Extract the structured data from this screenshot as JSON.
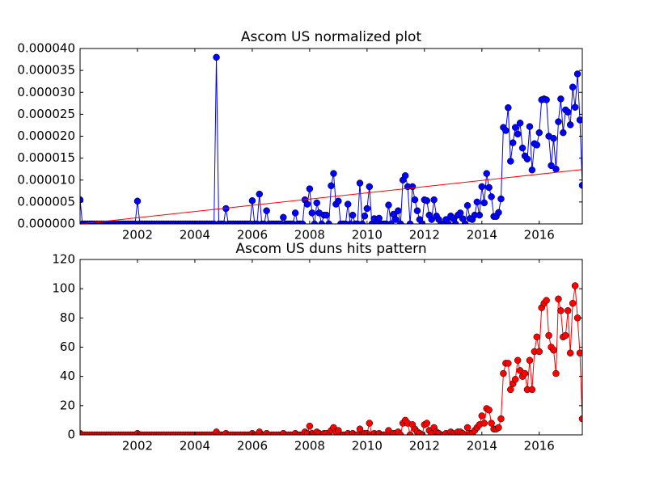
{
  "chart_data": [
    {
      "type": "line",
      "title": "Ascom US normalized plot",
      "x": [
        2000,
        2000.083,
        2000.167,
        2000.25,
        2000.333,
        2000.417,
        2000.5,
        2000.583,
        2000.667,
        2000.75,
        2000.833,
        2000.917,
        2001,
        2001.083,
        2001.167,
        2001.25,
        2001.333,
        2001.417,
        2001.5,
        2001.583,
        2001.667,
        2001.75,
        2001.833,
        2001.917,
        2002,
        2002.083,
        2002.167,
        2002.25,
        2002.333,
        2002.417,
        2002.5,
        2002.583,
        2002.667,
        2002.75,
        2002.833,
        2002.917,
        2003,
        2003.083,
        2003.167,
        2003.25,
        2003.333,
        2003.417,
        2003.5,
        2003.583,
        2003.667,
        2003.75,
        2003.833,
        2003.917,
        2004,
        2004.083,
        2004.167,
        2004.25,
        2004.333,
        2004.417,
        2004.5,
        2004.583,
        2004.667,
        2004.75,
        2004.833,
        2004.917,
        2005,
        2005.083,
        2005.167,
        2005.25,
        2005.333,
        2005.417,
        2005.5,
        2005.583,
        2005.667,
        2005.75,
        2005.833,
        2005.917,
        2006,
        2006.083,
        2006.167,
        2006.25,
        2006.333,
        2006.417,
        2006.5,
        2006.583,
        2006.667,
        2006.75,
        2006.833,
        2006.917,
        2007,
        2007.083,
        2007.167,
        2007.25,
        2007.333,
        2007.417,
        2007.5,
        2007.583,
        2007.667,
        2007.75,
        2007.833,
        2007.917,
        2008,
        2008.083,
        2008.167,
        2008.25,
        2008.333,
        2008.417,
        2008.5,
        2008.583,
        2008.667,
        2008.75,
        2008.833,
        2008.917,
        2009,
        2009.083,
        2009.167,
        2009.25,
        2009.333,
        2009.417,
        2009.5,
        2009.583,
        2009.667,
        2009.75,
        2009.833,
        2009.917,
        2010,
        2010.083,
        2010.167,
        2010.25,
        2010.333,
        2010.417,
        2010.5,
        2010.583,
        2010.667,
        2010.75,
        2010.833,
        2010.917,
        2011,
        2011.083,
        2011.167,
        2011.25,
        2011.333,
        2011.417,
        2011.5,
        2011.583,
        2011.667,
        2011.75,
        2011.833,
        2011.917,
        2012,
        2012.083,
        2012.167,
        2012.25,
        2012.333,
        2012.417,
        2012.5,
        2012.583,
        2012.667,
        2012.75,
        2012.833,
        2012.917,
        2013,
        2013.083,
        2013.167,
        2013.25,
        2013.333,
        2013.417,
        2013.5,
        2013.583,
        2013.667,
        2013.75,
        2013.833,
        2013.917,
        2014,
        2014.083,
        2014.167,
        2014.25,
        2014.333,
        2014.417,
        2014.5,
        2014.583,
        2014.667,
        2014.75,
        2014.833,
        2014.917,
        2015,
        2015.083,
        2015.167,
        2015.25,
        2015.333,
        2015.417,
        2015.5,
        2015.583,
        2015.667,
        2015.75,
        2015.833,
        2015.917,
        2016,
        2016.083,
        2016.167,
        2016.25,
        2016.333,
        2016.417,
        2016.5,
        2016.583,
        2016.667,
        2016.75,
        2016.833,
        2016.917,
        2017,
        2017.083,
        2017.167,
        2017.25,
        2017.333,
        2017.417,
        2017.5
      ],
      "series": [
        {
          "color": "#0000ff",
          "values": [
            5.5e-06,
            0,
            0,
            0,
            0,
            0,
            0,
            0,
            0,
            0,
            0,
            0,
            0,
            0,
            0,
            0,
            0,
            0,
            0,
            0,
            0,
            0,
            0,
            0,
            5.2e-06,
            0,
            0,
            0,
            0,
            0,
            0,
            0,
            0,
            0,
            0,
            0,
            0,
            0,
            0,
            0,
            0,
            0,
            0,
            0,
            0,
            0,
            0,
            0,
            0,
            0,
            0,
            0,
            0,
            0,
            0,
            0,
            0,
            3.8e-05,
            0,
            0,
            0,
            3.5e-06,
            0,
            0,
            0,
            0,
            0,
            0,
            0,
            0,
            0,
            0,
            5.3e-06,
            0,
            0,
            6.8e-06,
            0,
            0,
            3e-06,
            0,
            0,
            0,
            0,
            0,
            0,
            1.5e-06,
            0,
            0,
            0,
            0,
            2.5e-06,
            0,
            0,
            0,
            5.5e-06,
            4.5e-06,
            8e-06,
            2.5e-06,
            0,
            4.8e-06,
            2.5e-06,
            0,
            2e-06,
            2e-06,
            0,
            8.7e-06,
            1.15e-05,
            4.5e-06,
            5.2e-06,
            0,
            0,
            0,
            4.5e-06,
            0,
            2e-06,
            0,
            0,
            9.3e-06,
            0,
            1.8e-06,
            3.5e-06,
            8.5e-06,
            0,
            1.2e-06,
            0,
            1.3e-06,
            0,
            0,
            0,
            4.3e-06,
            0,
            2.2e-06,
            1e-06,
            3e-06,
            0,
            1e-05,
            1.1e-05,
            8.5e-06,
            0,
            8.5e-06,
            5.5e-06,
            3e-06,
            1e-06,
            0,
            5.5e-06,
            5.3e-06,
            2e-06,
            1e-06,
            5.5e-06,
            1.8e-06,
            1e-06,
            0,
            0,
            1e-06,
            0,
            1.8e-06,
            1.2e-06,
            0,
            2e-06,
            2.5e-06,
            1.2e-06,
            0,
            4.2e-06,
            1.2e-06,
            1e-06,
            2e-06,
            5e-06,
            2e-06,
            8.5e-06,
            4.8e-06,
            1.15e-05,
            8.3e-06,
            6.2e-06,
            1.7e-06,
            1.7e-06,
            2.6e-06,
            5.7e-06,
            2.2e-05,
            2.13e-05,
            2.65e-05,
            1.43e-05,
            1.85e-05,
            2.2e-05,
            2.05e-05,
            2.3e-05,
            1.73e-05,
            1.55e-05,
            1.48e-05,
            2.22e-05,
            1.23e-05,
            1.83e-05,
            1.8e-05,
            2.08e-05,
            2.83e-05,
            2.85e-05,
            2.83e-05,
            2e-05,
            1.33e-05,
            1.95e-05,
            1.25e-05,
            2.33e-05,
            2.85e-05,
            2.08e-05,
            2.6e-05,
            2.55e-05,
            2.26e-05,
            3.12e-05,
            2.66e-05,
            3.42e-05,
            2.37e-05,
            8.8e-06
          ]
        }
      ],
      "fit": {
        "x": [
          2000,
          2017.5
        ],
        "values": [
          0,
          1.24e-05
        ],
        "color": "#ff0000"
      },
      "xlim": [
        2000,
        2017.5
      ],
      "xticks": [
        2002,
        2004,
        2006,
        2008,
        2010,
        2012,
        2014,
        2016
      ],
      "ylim": [
        0,
        4e-05
      ],
      "yticks": [
        {
          "value": 0,
          "label": "0.000000"
        },
        {
          "value": 5e-06,
          "label": "0.000005"
        },
        {
          "value": 1e-05,
          "label": "0.000010"
        },
        {
          "value": 1.5e-05,
          "label": "0.000015"
        },
        {
          "value": 2e-05,
          "label": "0.000020"
        },
        {
          "value": 2.5e-05,
          "label": "0.000025"
        },
        {
          "value": 3e-05,
          "label": "0.000030"
        },
        {
          "value": 3.5e-05,
          "label": "0.000035"
        },
        {
          "value": 4e-05,
          "label": "0.000040"
        }
      ]
    },
    {
      "type": "line",
      "title": "Ascom US duns hits pattern",
      "x": [
        2000,
        2000.083,
        2000.167,
        2000.25,
        2000.333,
        2000.417,
        2000.5,
        2000.583,
        2000.667,
        2000.75,
        2000.833,
        2000.917,
        2001,
        2001.083,
        2001.167,
        2001.25,
        2001.333,
        2001.417,
        2001.5,
        2001.583,
        2001.667,
        2001.75,
        2001.833,
        2001.917,
        2002,
        2002.083,
        2002.167,
        2002.25,
        2002.333,
        2002.417,
        2002.5,
        2002.583,
        2002.667,
        2002.75,
        2002.833,
        2002.917,
        2003,
        2003.083,
        2003.167,
        2003.25,
        2003.333,
        2003.417,
        2003.5,
        2003.583,
        2003.667,
        2003.75,
        2003.833,
        2003.917,
        2004,
        2004.083,
        2004.167,
        2004.25,
        2004.333,
        2004.417,
        2004.5,
        2004.583,
        2004.667,
        2004.75,
        2004.833,
        2004.917,
        2005,
        2005.083,
        2005.167,
        2005.25,
        2005.333,
        2005.417,
        2005.5,
        2005.583,
        2005.667,
        2005.75,
        2005.833,
        2005.917,
        2006,
        2006.083,
        2006.167,
        2006.25,
        2006.333,
        2006.417,
        2006.5,
        2006.583,
        2006.667,
        2006.75,
        2006.833,
        2006.917,
        2007,
        2007.083,
        2007.167,
        2007.25,
        2007.333,
        2007.417,
        2007.5,
        2007.583,
        2007.667,
        2007.75,
        2007.833,
        2007.917,
        2008,
        2008.083,
        2008.167,
        2008.25,
        2008.333,
        2008.417,
        2008.5,
        2008.583,
        2008.667,
        2008.75,
        2008.833,
        2008.917,
        2009,
        2009.083,
        2009.167,
        2009.25,
        2009.333,
        2009.417,
        2009.5,
        2009.583,
        2009.667,
        2009.75,
        2009.833,
        2009.917,
        2010,
        2010.083,
        2010.167,
        2010.25,
        2010.333,
        2010.417,
        2010.5,
        2010.583,
        2010.667,
        2010.75,
        2010.833,
        2010.917,
        2011,
        2011.083,
        2011.167,
        2011.25,
        2011.333,
        2011.417,
        2011.5,
        2011.583,
        2011.667,
        2011.75,
        2011.833,
        2011.917,
        2012,
        2012.083,
        2012.167,
        2012.25,
        2012.333,
        2012.417,
        2012.5,
        2012.583,
        2012.667,
        2012.75,
        2012.833,
        2012.917,
        2013,
        2013.083,
        2013.167,
        2013.25,
        2013.333,
        2013.417,
        2013.5,
        2013.583,
        2013.667,
        2013.75,
        2013.833,
        2013.917,
        2014,
        2014.083,
        2014.167,
        2014.25,
        2014.333,
        2014.417,
        2014.5,
        2014.583,
        2014.667,
        2014.75,
        2014.833,
        2014.917,
        2015,
        2015.083,
        2015.167,
        2015.25,
        2015.333,
        2015.417,
        2015.5,
        2015.583,
        2015.667,
        2015.75,
        2015.833,
        2015.917,
        2016,
        2016.083,
        2016.167,
        2016.25,
        2016.333,
        2016.417,
        2016.5,
        2016.583,
        2016.667,
        2016.75,
        2016.833,
        2016.917,
        2017,
        2017.083,
        2017.167,
        2017.25,
        2017.333,
        2017.417,
        2017.5
      ],
      "series": [
        {
          "color": "#ff0000",
          "values": [
            1,
            0,
            0,
            0,
            0,
            0,
            0,
            0,
            0,
            0,
            0,
            0,
            0,
            0,
            0,
            0,
            0,
            0,
            0,
            0,
            0,
            0,
            0,
            0,
            1,
            0,
            0,
            0,
            0,
            0,
            0,
            0,
            0,
            0,
            0,
            0,
            0,
            0,
            0,
            0,
            0,
            0,
            0,
            0,
            0,
            0,
            0,
            0,
            0,
            0,
            0,
            0,
            0,
            0,
            0,
            0,
            0,
            2,
            0,
            0,
            0,
            1,
            0,
            0,
            0,
            0,
            0,
            0,
            0,
            0,
            0,
            0,
            1,
            0,
            0,
            2,
            0,
            0,
            1,
            0,
            0,
            0,
            0,
            0,
            0,
            1,
            0,
            0,
            0,
            0,
            1,
            0,
            0,
            0,
            2,
            1,
            6,
            1,
            0,
            2,
            1,
            0,
            1,
            1,
            0,
            3,
            5,
            2,
            3,
            0,
            0,
            0,
            1,
            0,
            1,
            0,
            0,
            4,
            0,
            1,
            1,
            8,
            0,
            1,
            0,
            1,
            0,
            0,
            0,
            3,
            0,
            1,
            1,
            2,
            0,
            8,
            10,
            8,
            0,
            7,
            4,
            2,
            1,
            0,
            7,
            8,
            3,
            1,
            5,
            2,
            1,
            0,
            0,
            1,
            0,
            2,
            1,
            0,
            2,
            2,
            1,
            0,
            5,
            1,
            1,
            3,
            5,
            7,
            13,
            8,
            18,
            17,
            8,
            4,
            4,
            5,
            11,
            42,
            49,
            49,
            31,
            35,
            38,
            51,
            44,
            40,
            42,
            31,
            51,
            31,
            57,
            67,
            57,
            87,
            90,
            92,
            68,
            60,
            58,
            42,
            93,
            85,
            67,
            68,
            85,
            56,
            90,
            102,
            80,
            56,
            11
          ]
        }
      ],
      "xlim": [
        2000,
        2017.5
      ],
      "xticks": [
        2002,
        2004,
        2006,
        2008,
        2010,
        2012,
        2014,
        2016
      ],
      "ylim": [
        0,
        120
      ],
      "yticks": [
        0,
        20,
        40,
        60,
        80,
        100,
        120
      ]
    }
  ]
}
